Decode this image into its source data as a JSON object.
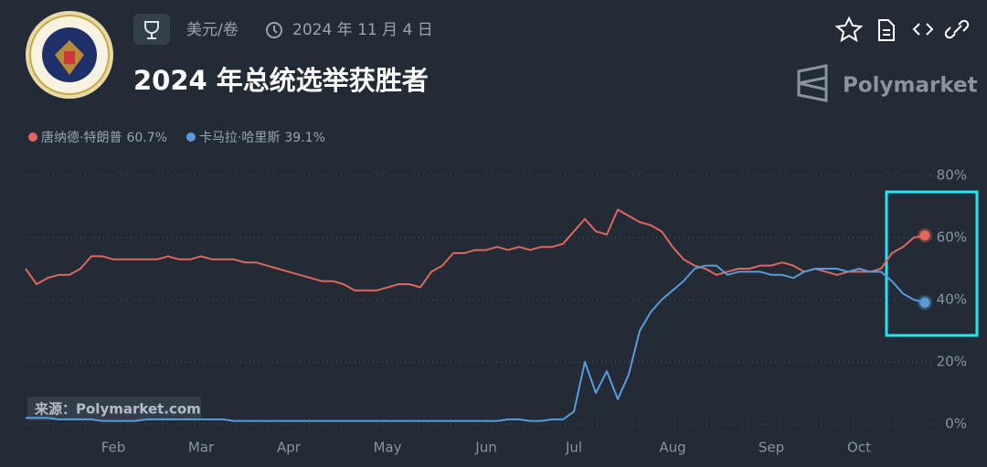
{
  "header": {
    "category": "美元/卷",
    "date": "2024 年 11 月 4 日",
    "title": "2024 年总统选举获胜者",
    "brand": "Polymarket"
  },
  "chart_data": {
    "type": "line",
    "watermark": "来源：Polymarket.com",
    "grid": true,
    "categories": [
      null,
      null,
      null,
      null,
      null,
      null,
      null,
      null,
      "Feb",
      null,
      null,
      null,
      null,
      null,
      null,
      null,
      "Mar",
      null,
      null,
      null,
      null,
      null,
      null,
      null,
      "Apr",
      null,
      null,
      null,
      null,
      null,
      null,
      null,
      null,
      "May",
      null,
      null,
      null,
      null,
      null,
      null,
      null,
      null,
      "Jun",
      null,
      null,
      null,
      null,
      null,
      null,
      null,
      "Jul",
      null,
      null,
      null,
      null,
      null,
      null,
      null,
      null,
      "Aug",
      null,
      null,
      null,
      null,
      null,
      null,
      null,
      null,
      "Sep",
      null,
      null,
      null,
      null,
      null,
      null,
      null,
      "Oct",
      null,
      null,
      null,
      null,
      null,
      null
    ],
    "series": [
      {
        "name": "唐纳德·特朗普",
        "color": "#e0675c",
        "last_label": "60.7%",
        "values": [
          50,
          45,
          47,
          48,
          48,
          50,
          54,
          54,
          53,
          53,
          53,
          53,
          53,
          54,
          53,
          53,
          54,
          53,
          53,
          53,
          52,
          52,
          51,
          50,
          49,
          48,
          47,
          46,
          46,
          45,
          43,
          43,
          43,
          44,
          45,
          45,
          44,
          49,
          51,
          55,
          55,
          56,
          56,
          57,
          56,
          57,
          56,
          57,
          57,
          58,
          62,
          66,
          62,
          61,
          69,
          67,
          65,
          64,
          62,
          57,
          53,
          51,
          50,
          48,
          49,
          50,
          50,
          51,
          51,
          52,
          51,
          49,
          50,
          49,
          48,
          49,
          49,
          49,
          50,
          55,
          57,
          60,
          60.7
        ]
      },
      {
        "name": "卡马拉·哈里斯",
        "color": "#5b9bd9",
        "last_label": "39.1%",
        "values": [
          2,
          2,
          2,
          1.5,
          1.5,
          1.5,
          1.5,
          1,
          1,
          1,
          1,
          1.5,
          1.5,
          1.5,
          1.5,
          1.5,
          1.5,
          1.5,
          1.5,
          1,
          1,
          1,
          1,
          1,
          1,
          1,
          1,
          1,
          1,
          1,
          1,
          1,
          1,
          1,
          1,
          1,
          1,
          1,
          1,
          1,
          1,
          1,
          1,
          1,
          1.5,
          1.5,
          1,
          1,
          1.5,
          1.5,
          4,
          20,
          10,
          17,
          8,
          16,
          30,
          36,
          40,
          43,
          46,
          50,
          51,
          51,
          48,
          49,
          49,
          49,
          48,
          48,
          47,
          49,
          50,
          50,
          50,
          49,
          50,
          49,
          49,
          46,
          42,
          40,
          39.1
        ]
      }
    ],
    "ylim": [
      0,
      80
    ],
    "yticks": [
      {
        "value": 0,
        "label": "0%"
      },
      {
        "value": 20,
        "label": "20%"
      },
      {
        "value": 40,
        "label": "40%"
      },
      {
        "value": 60,
        "label": "60%"
      },
      {
        "value": 80,
        "label": "80%"
      }
    ]
  }
}
